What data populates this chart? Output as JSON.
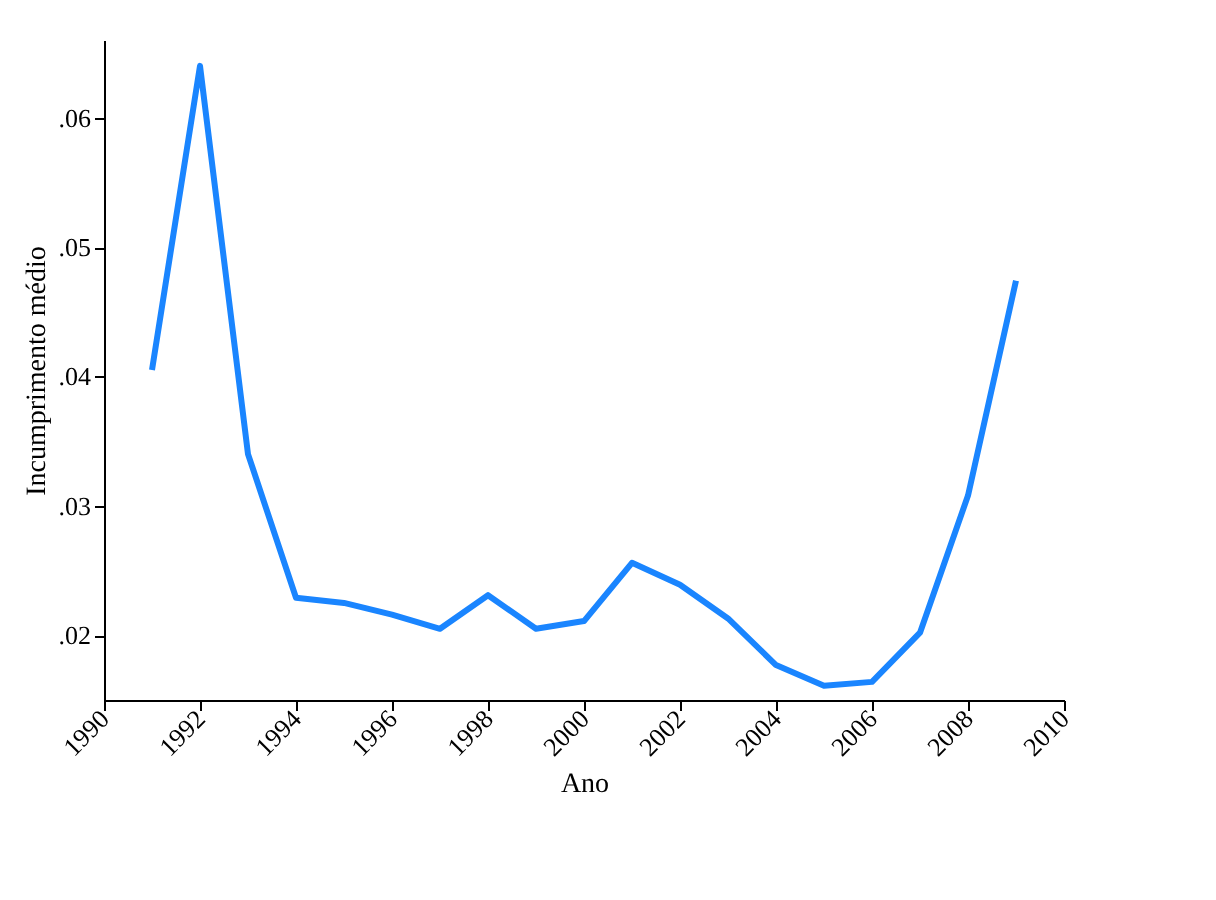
{
  "chart_data": {
    "type": "line",
    "xlabel": "Ano",
    "ylabel": "Incumprimento médio",
    "x": [
      1991,
      1992,
      1993,
      1994,
      1995,
      1996,
      1997,
      1998,
      1999,
      2000,
      2001,
      2002,
      2003,
      2004,
      2005,
      2006,
      2007,
      2008,
      2009
    ],
    "series": [
      {
        "color": "#1a85ff",
        "values": [
          0.0405,
          0.064,
          0.034,
          0.0229,
          0.0225,
          0.0216,
          0.0205,
          0.0231,
          0.0205,
          0.0211,
          0.0256,
          0.0239,
          0.0213,
          0.0177,
          0.0161,
          0.0164,
          0.0202,
          0.0308,
          0.0474
        ]
      }
    ],
    "xlim": [
      1990,
      2010
    ],
    "xticks": [
      1990,
      1992,
      1994,
      1996,
      1998,
      2000,
      2002,
      2004,
      2006,
      2008,
      2010
    ],
    "ylim": [
      0.015,
      0.066
    ],
    "yticks": [
      {
        "value": 0.02,
        "label": ".02"
      },
      {
        "value": 0.03,
        "label": ".03"
      },
      {
        "value": 0.04,
        "label": ".04"
      },
      {
        "value": 0.05,
        "label": ".05"
      },
      {
        "value": 0.06,
        "label": ".06"
      }
    ],
    "grid": false,
    "marker": "none",
    "line_style": "solid"
  }
}
